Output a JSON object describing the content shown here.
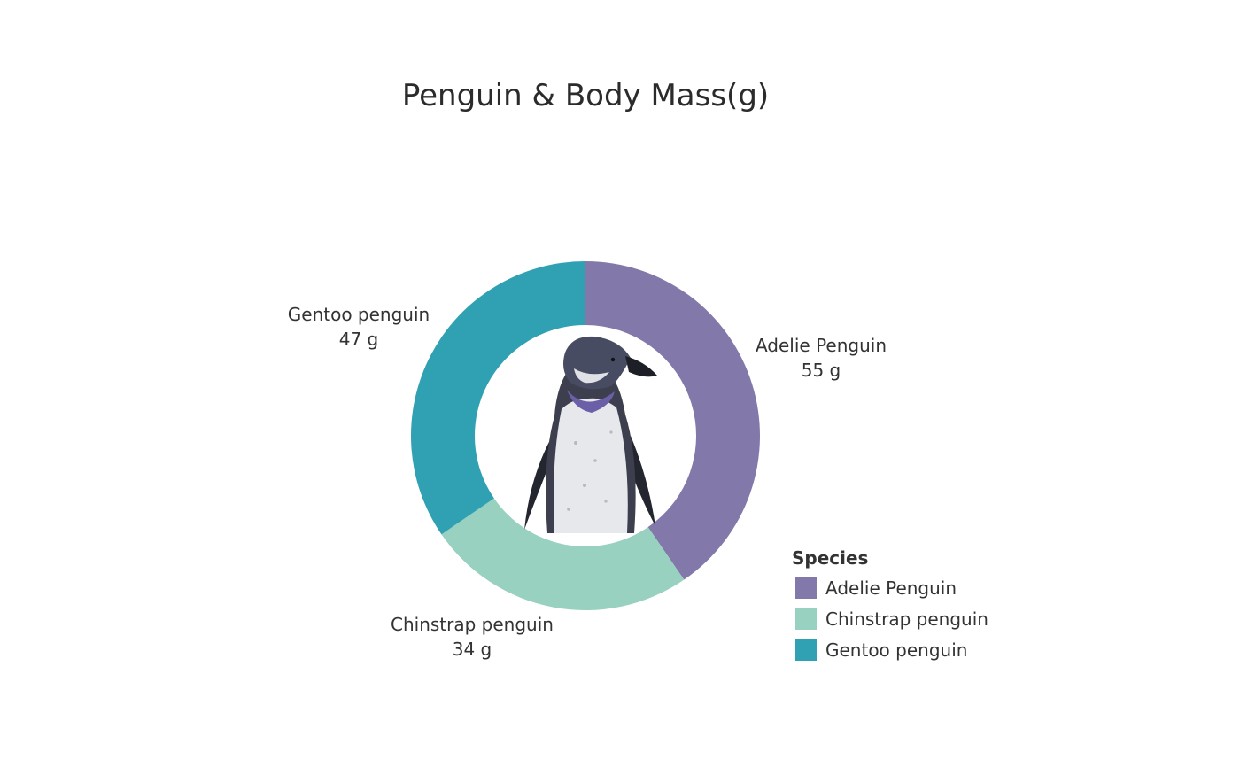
{
  "title": "Penguin & Body Mass(g)",
  "chart_data": {
    "type": "pie",
    "title": "Penguin & Body Mass(g)",
    "variant": "donut",
    "unit": "g",
    "slices": [
      {
        "name": "Adelie Penguin",
        "value": 55,
        "value_label": "55 g",
        "color": "#8279aa"
      },
      {
        "name": "Chinstrap penguin",
        "value": 34,
        "value_label": "34 g",
        "color": "#98d1c0"
      },
      {
        "name": "Gentoo penguin",
        "value": 47,
        "value_label": "47 g",
        "color": "#30a1b3"
      }
    ],
    "legend": {
      "title": "Species",
      "placement": "bottom-right",
      "items": [
        "Adelie Penguin",
        "Chinstrap penguin",
        "Gentoo penguin"
      ]
    },
    "center_image": "penguin-photo"
  }
}
